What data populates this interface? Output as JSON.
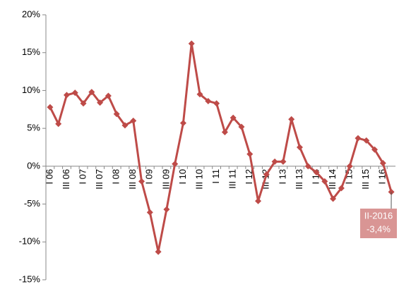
{
  "chart_data": {
    "type": "line",
    "categories": [
      "I 06",
      null,
      "III 06",
      null,
      "I 07",
      null,
      "III 07",
      null,
      "I 08",
      null,
      "III 08",
      null,
      "I 09",
      null,
      "III 09",
      null,
      "I 10",
      null,
      "III 10",
      null,
      "I 11",
      null,
      "III 11",
      null,
      "I 12",
      null,
      "III 12",
      null,
      "I 13",
      null,
      "III 13",
      null,
      "I 14",
      null,
      "III 14",
      null,
      "I 15",
      null,
      "III 15",
      null,
      "I 16",
      null
    ],
    "series": [
      {
        "color": "#be4b48",
        "values": [
          7.8,
          5.6,
          9.4,
          9.7,
          8.3,
          9.8,
          8.4,
          9.3,
          6.9,
          5.4,
          6.0,
          -2.0,
          -6.1,
          -11.3,
          -5.7,
          0.3,
          5.7,
          16.2,
          9.5,
          8.6,
          8.3,
          4.5,
          6.4,
          5.2,
          1.6,
          -4.6,
          -1.1,
          0.6,
          0.6,
          6.2,
          2.5,
          0.0,
          -0.8,
          -2.0,
          -4.3,
          -2.9,
          0.0,
          3.7,
          3.4,
          2.2,
          0.4,
          -3.4
        ]
      }
    ],
    "ylim": [
      -15,
      20
    ],
    "yticks": [
      {
        "value": -15,
        "label": "-15%"
      },
      {
        "value": -10,
        "label": "-10%"
      },
      {
        "value": -5,
        "label": "-5%"
      },
      {
        "value": 0,
        "label": "0%"
      },
      {
        "value": 5,
        "label": "5%"
      },
      {
        "value": 10,
        "label": "10%"
      },
      {
        "value": 15,
        "label": "15%"
      },
      {
        "value": 20,
        "label": "20%"
      }
    ],
    "annotation": {
      "lines": [
        "II-2016",
        "-3,4%"
      ],
      "color": "#d99594"
    },
    "grid": false
  }
}
